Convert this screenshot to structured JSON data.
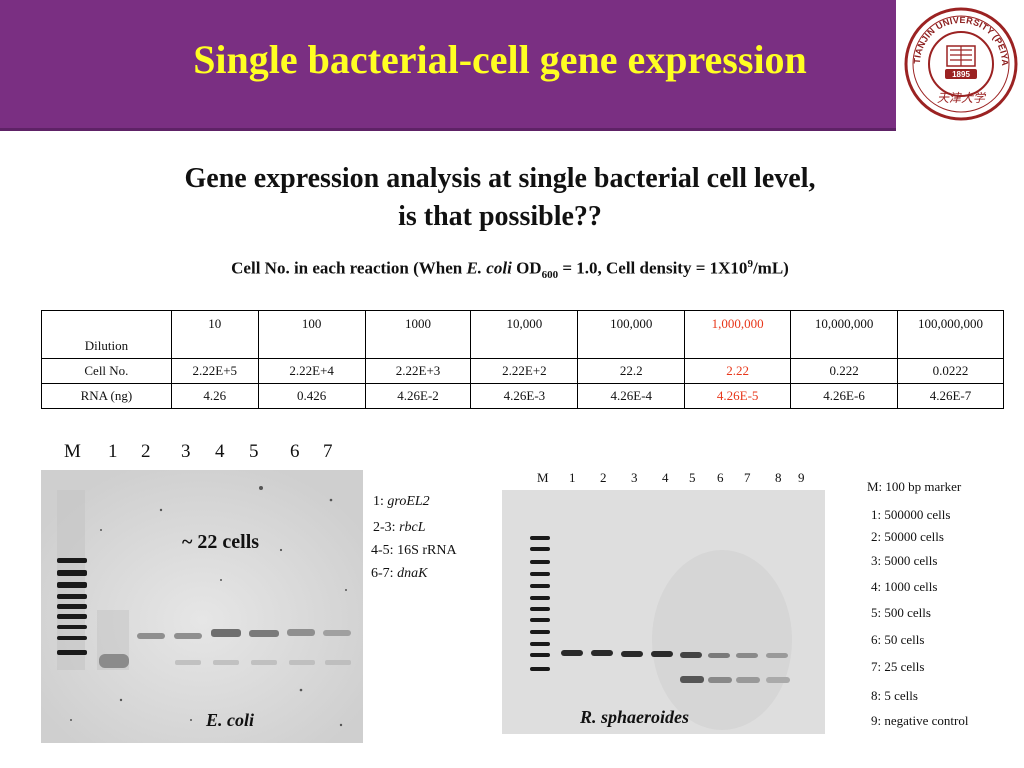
{
  "header": {
    "title": "Single bacterial-cell gene expression",
    "logo_text_top": "TIANJIN UNIVERSITY (PEIYANG UNIVERSITY)",
    "logo_year": "1895",
    "logo_script": "天津大学"
  },
  "subtitle": {
    "line1": "Gene expression analysis at single bacterial cell level,",
    "line2": "is that possible??"
  },
  "cell_line": {
    "prefix": "Cell No. in each reaction (When ",
    "organism": "E. coli",
    "od": " OD",
    "od_sub": "600",
    "mid": " = 1.0, Cell density = 1X10",
    "sup": "9",
    "suffix": "/mL)"
  },
  "table": {
    "rows": [
      {
        "label": "Dilution",
        "values": [
          "10",
          "100",
          "1000",
          "10,000",
          "100,000",
          "1,000,000",
          "10,000,000",
          "100,000,000"
        ]
      },
      {
        "label": "Cell No.",
        "values": [
          "2.22E+5",
          "2.22E+4",
          "2.22E+3",
          "2.22E+2",
          "22.2",
          "2.22",
          "0.222",
          "0.0222"
        ]
      },
      {
        "label": "RNA (ng)",
        "values": [
          "4.26",
          "0.426",
          "4.26E-2",
          "4.26E-3",
          "4.26E-4",
          "4.26E-5",
          "4.26E-6",
          "4.26E-7"
        ]
      }
    ],
    "highlight_color": "#e8371a"
  },
  "gel1": {
    "lanes": [
      "M",
      "1",
      "2",
      "3",
      "4",
      "5",
      "6",
      "7"
    ],
    "cells_label": "~ 22 cells",
    "organism": "E. coli",
    "legend": [
      {
        "num": "1: ",
        "gene": "groEL2",
        "italic": true
      },
      {
        "num": "2-3: ",
        "gene": "rbcL",
        "italic": true
      },
      {
        "num": "4-5: ",
        "gene": "16S rRNA",
        "italic": false
      },
      {
        "num": "6-7: ",
        "gene": "dnaK",
        "italic": true
      }
    ]
  },
  "gel2": {
    "lanes": [
      "M",
      "1",
      "2",
      "3",
      "4",
      "5",
      "6",
      "7",
      "8",
      "9"
    ],
    "organism": "R. sphaeroides",
    "legend": [
      "M: 100 bp marker",
      "1:  500000 cells",
      "2:  50000 cells",
      "3:  5000 cells",
      "4:  1000 cells",
      "5:  500 cells",
      "6:  50 cells",
      "7:  25 cells",
      "8:  5 cells",
      "9:  negative control"
    ]
  }
}
